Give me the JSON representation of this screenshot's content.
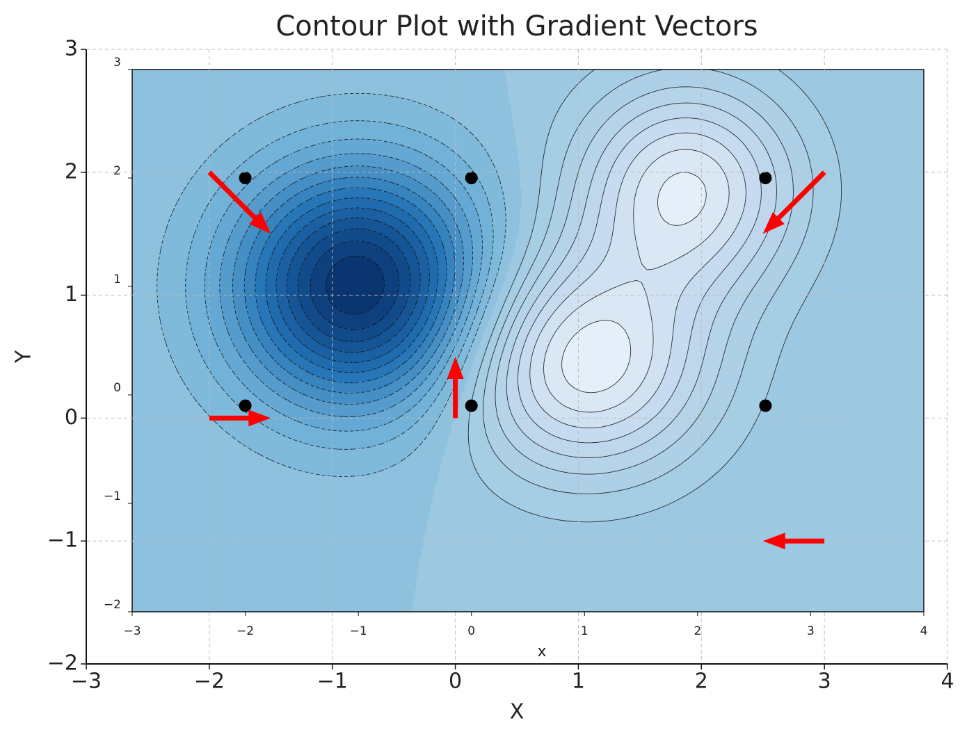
{
  "chart_data": [
    {
      "type": "quiver",
      "title": "Contour Plot with Gradient Vectors",
      "xlabel": "X",
      "ylabel": "Y",
      "xlim": [
        -3,
        4
      ],
      "ylim": [
        -2,
        3
      ],
      "xticks": [
        {
          "value": -3,
          "label": "−3"
        },
        {
          "value": -2,
          "label": "−2"
        },
        {
          "value": -1,
          "label": "−1"
        },
        0,
        1,
        2,
        3,
        4
      ],
      "yticks": [
        {
          "value": -2,
          "label": "−2"
        },
        {
          "value": -1,
          "label": "−1"
        },
        0,
        1,
        2,
        3
      ],
      "grid": true,
      "arrows": {
        "x": [
          -2,
          -2,
          0,
          3,
          3
        ],
        "y": [
          2,
          0,
          0,
          2,
          -1
        ],
        "u": [
          0.5,
          0.5,
          0,
          -0.5,
          -0.5
        ],
        "v": [
          -0.5,
          0,
          0.5,
          -0.5,
          0
        ],
        "color": "#ff0000"
      }
    },
    {
      "type": "contour",
      "xlabel": "x",
      "xlim": [
        -3,
        4
      ],
      "ylim": [
        -2,
        3
      ],
      "xticks": [
        {
          "value": -3,
          "label": "−3"
        },
        {
          "value": -2,
          "label": "−2"
        },
        {
          "value": -1,
          "label": "−1"
        },
        0,
        1,
        2,
        3,
        4
      ],
      "yticks": [
        {
          "value": -2,
          "label": "−2"
        },
        {
          "value": -1,
          "label": "−1"
        },
        0,
        1,
        2,
        3
      ],
      "points": {
        "x": [
          -2,
          0,
          -2,
          0,
          2.6,
          2.6
        ],
        "y": [
          2,
          2,
          -0.1,
          -0.1,
          2,
          -0.1
        ],
        "color": "#000000"
      }
    }
  ]
}
